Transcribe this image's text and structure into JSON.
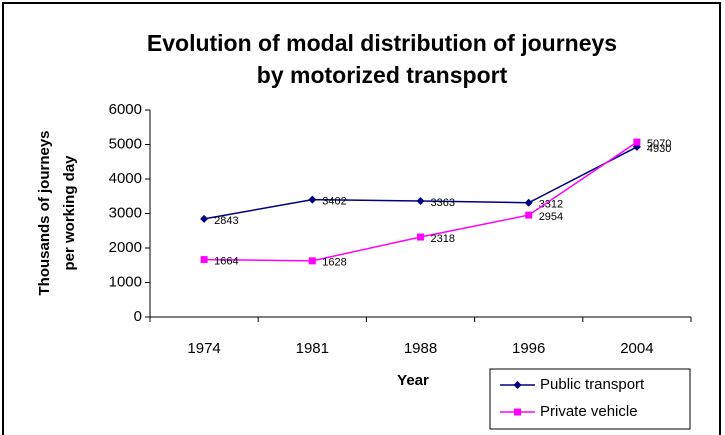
{
  "chart_data": {
    "type": "line",
    "title": [
      "Evolution of modal distribution of journeys",
      "by motorized transport"
    ],
    "x_label": "Year",
    "y_label": [
      "Thousands of journeys",
      "per working day"
    ],
    "categories": [
      "1974",
      "1981",
      "1988",
      "1996",
      "2004"
    ],
    "series": [
      {
        "name": "Public transport",
        "color": "#000080",
        "marker": "diamond",
        "values": [
          2843,
          3402,
          3363,
          3312,
          4930
        ]
      },
      {
        "name": "Private vehicle",
        "color": "#ff00ff",
        "marker": "square",
        "values": [
          1664,
          1628,
          2318,
          2954,
          5070
        ]
      }
    ],
    "ylim": [
      0,
      6000
    ],
    "yticks": [
      0,
      1000,
      2000,
      3000,
      4000,
      5000,
      6000
    ],
    "grid": false,
    "legend": "bottom-right"
  }
}
